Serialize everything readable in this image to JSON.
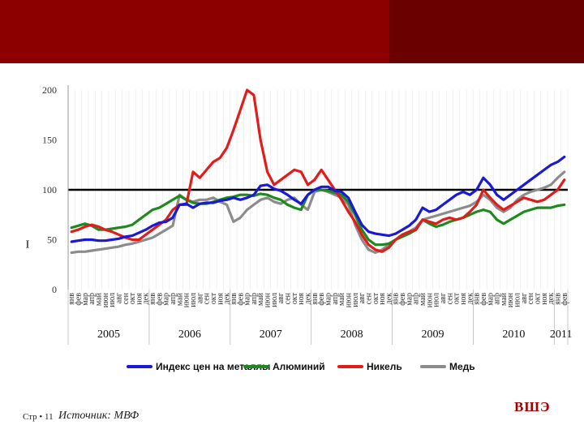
{
  "footer": {
    "page_label": "Стр • 11",
    "source": "Источник: МВФ"
  },
  "logo": {
    "text": "ВШЭ"
  },
  "chart_data": {
    "type": "line",
    "ylim": [
      0,
      200
    ],
    "yticks": [
      0,
      50,
      100,
      150,
      200
    ],
    "ylabel": "I",
    "reference_line": 100,
    "months": [
      "янв",
      "фев",
      "мар",
      "апр",
      "май",
      "июн",
      "июл",
      "авг",
      "сен",
      "окт",
      "ноя",
      "дек"
    ],
    "start_month_index": 0,
    "n_months": 74,
    "years": [
      "2005",
      "2006",
      "2007",
      "2008",
      "2009",
      "2010",
      "2011"
    ],
    "colors": {
      "metals": "#1a1ad6",
      "aluminium": "#1e8a1e",
      "nickel": "#e21b1b",
      "copper": "#8c8c8c"
    },
    "legend": [
      "Индекс цен на металлы",
      "Алюминий",
      "Никель",
      "Медь"
    ],
    "series": [
      {
        "name": "Индекс цен на металлы",
        "values": [
          48,
          49,
          50,
          50,
          49,
          49,
          50,
          51,
          53,
          54,
          57,
          60,
          64,
          67,
          68,
          72,
          85,
          86,
          82,
          86,
          87,
          87,
          89,
          90,
          92,
          90,
          92,
          95,
          104,
          105,
          101,
          99,
          95,
          90,
          86,
          95,
          100,
          103,
          103,
          99,
          98,
          92,
          78,
          65,
          58,
          56,
          55,
          54,
          56,
          60,
          64,
          70,
          82,
          78,
          80,
          85,
          90,
          95,
          98,
          95,
          100,
          112,
          105,
          95,
          90,
          95,
          100,
          105,
          110,
          115,
          120,
          125,
          128,
          133
        ]
      },
      {
        "name": "Алюминий",
        "values": [
          62,
          64,
          66,
          64,
          60,
          60,
          61,
          62,
          63,
          65,
          70,
          75,
          80,
          82,
          86,
          90,
          94,
          90,
          87,
          86,
          86,
          88,
          90,
          92,
          93,
          95,
          95,
          94,
          96,
          95,
          92,
          90,
          85,
          82,
          80,
          95,
          100,
          100,
          99,
          97,
          95,
          88,
          75,
          60,
          50,
          45,
          45,
          46,
          50,
          53,
          56,
          60,
          70,
          66,
          63,
          65,
          68,
          70,
          72,
          75,
          78,
          80,
          78,
          70,
          66,
          70,
          74,
          78,
          80,
          82,
          82,
          82,
          84,
          85
        ]
      },
      {
        "name": "Никель",
        "values": [
          58,
          60,
          63,
          65,
          63,
          60,
          58,
          55,
          52,
          50,
          50,
          55,
          60,
          65,
          70,
          80,
          85,
          85,
          118,
          112,
          120,
          128,
          132,
          142,
          160,
          180,
          200,
          195,
          150,
          118,
          105,
          110,
          115,
          120,
          118,
          105,
          110,
          120,
          110,
          100,
          90,
          78,
          68,
          55,
          45,
          40,
          38,
          42,
          50,
          55,
          58,
          60,
          70,
          68,
          66,
          70,
          72,
          70,
          72,
          78,
          85,
          100,
          92,
          85,
          80,
          84,
          88,
          92,
          90,
          88,
          90,
          95,
          100,
          110
        ]
      },
      {
        "name": "Медь",
        "values": [
          37,
          38,
          38,
          39,
          40,
          41,
          42,
          43,
          45,
          46,
          48,
          50,
          52,
          56,
          60,
          64,
          95,
          90,
          88,
          90,
          90,
          92,
          88,
          85,
          68,
          72,
          80,
          85,
          90,
          92,
          88,
          86,
          90,
          92,
          85,
          80,
          98,
          100,
          98,
          95,
          92,
          85,
          65,
          50,
          40,
          37,
          40,
          45,
          50,
          55,
          58,
          62,
          70,
          72,
          74,
          76,
          78,
          80,
          82,
          84,
          88,
          95,
          90,
          82,
          78,
          82,
          90,
          95,
          98,
          100,
          102,
          105,
          112,
          118
        ]
      }
    ]
  }
}
